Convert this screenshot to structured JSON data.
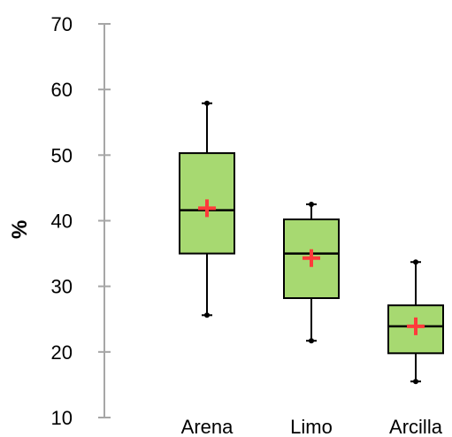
{
  "chart_data": {
    "type": "boxplot",
    "ylabel": "%",
    "ylim": [
      10,
      70
    ],
    "yticks": [
      "10",
      "20",
      "30",
      "40",
      "50",
      "60",
      "70"
    ],
    "categories": [
      "Arena",
      "Limo",
      "Arcilla"
    ],
    "boxes": [
      {
        "category": "Arena",
        "min": 25.6,
        "q1": 35.0,
        "median": 41.6,
        "q3": 50.3,
        "max": 57.9,
        "mean": 41.9
      },
      {
        "category": "Limo",
        "min": 21.7,
        "q1": 28.2,
        "median": 35.0,
        "q3": 40.2,
        "max": 42.5,
        "mean": 34.3
      },
      {
        "category": "Arcilla",
        "min": 15.5,
        "q1": 19.8,
        "median": 23.9,
        "q3": 27.1,
        "max": 33.7,
        "mean": 23.9
      }
    ],
    "grid": false,
    "colors": {
      "box_fill": "#a7d971",
      "box_stroke": "#000000",
      "mean_marker": "#ff3b3b",
      "axis": "#a6a6a6"
    }
  }
}
